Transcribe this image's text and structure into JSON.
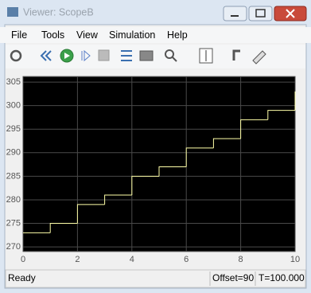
{
  "window": {
    "title": "Viewer: ScopeB"
  },
  "menu": [
    "File",
    "Tools",
    "View",
    "Simulation",
    "Help"
  ],
  "status": {
    "state": "Ready",
    "offset": "Offset=90",
    "time": "T=100.000"
  },
  "chart_data": {
    "type": "line",
    "drawstyle": "steps-post",
    "color": "#ffffa8",
    "grid": true,
    "x": [
      0,
      1,
      2,
      3,
      4,
      5,
      6,
      7,
      8,
      9,
      10
    ],
    "values": [
      273,
      275,
      279,
      281,
      285,
      287,
      291,
      293,
      297,
      299,
      303
    ],
    "xlim": [
      0,
      10
    ],
    "ylim": [
      269,
      306.2
    ],
    "xticks": [
      0,
      2,
      4,
      6,
      8,
      10
    ],
    "yticks": [
      270,
      275,
      280,
      285,
      290,
      295,
      300,
      305
    ]
  }
}
